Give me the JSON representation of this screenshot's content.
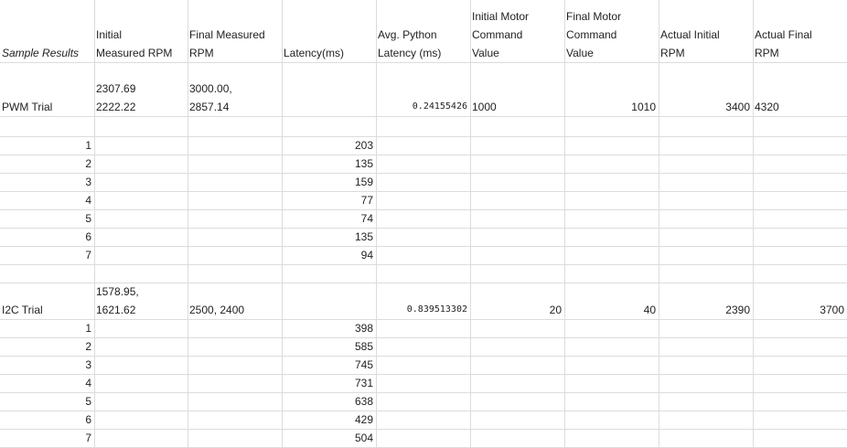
{
  "header": {
    "sample_results": "Sample Results",
    "initial_measured_rpm": "Initial\nMeasured RPM",
    "final_measured_rpm": "Final Measured\nRPM",
    "latency": "Latency(ms)",
    "avg_python_latency": "Avg. Python\nLatency (ms)",
    "initial_motor_cmd": "Initial Motor\nCommand\nValue",
    "final_motor_cmd": "Final Motor\nCommand\nValue",
    "actual_initial_rpm": "Actual Initial\nRPM",
    "actual_final_rpm": "Actual Final\nRPM"
  },
  "pwm": {
    "label": "PWM Trial",
    "initial_measured": "2307.69\n2222.22",
    "final_measured": "3000.00,\n2857.14",
    "avg_python_latency": "0.24155426",
    "initial_cmd": "1000",
    "final_cmd": "1010",
    "actual_initial": "3400",
    "actual_final": "4320",
    "rows": [
      {
        "n": "1",
        "latency": "203"
      },
      {
        "n": "2",
        "latency": "135"
      },
      {
        "n": "3",
        "latency": "159"
      },
      {
        "n": "4",
        "latency": "77"
      },
      {
        "n": "5",
        "latency": "74"
      },
      {
        "n": "6",
        "latency": "135"
      },
      {
        "n": "7",
        "latency": "94"
      }
    ]
  },
  "i2c": {
    "label": "I2C Trial",
    "initial_measured": "1578.95,\n1621.62",
    "final_measured": "2500, 2400",
    "avg_python_latency": "0.839513302",
    "initial_cmd": "20",
    "final_cmd": "40",
    "actual_initial": "2390",
    "actual_final": "3700",
    "rows": [
      {
        "n": "1",
        "latency": "398"
      },
      {
        "n": "2",
        "latency": "585"
      },
      {
        "n": "3",
        "latency": "745"
      },
      {
        "n": "4",
        "latency": "731"
      },
      {
        "n": "5",
        "latency": "638"
      },
      {
        "n": "6",
        "latency": "429"
      },
      {
        "n": "7",
        "latency": "504"
      }
    ]
  }
}
